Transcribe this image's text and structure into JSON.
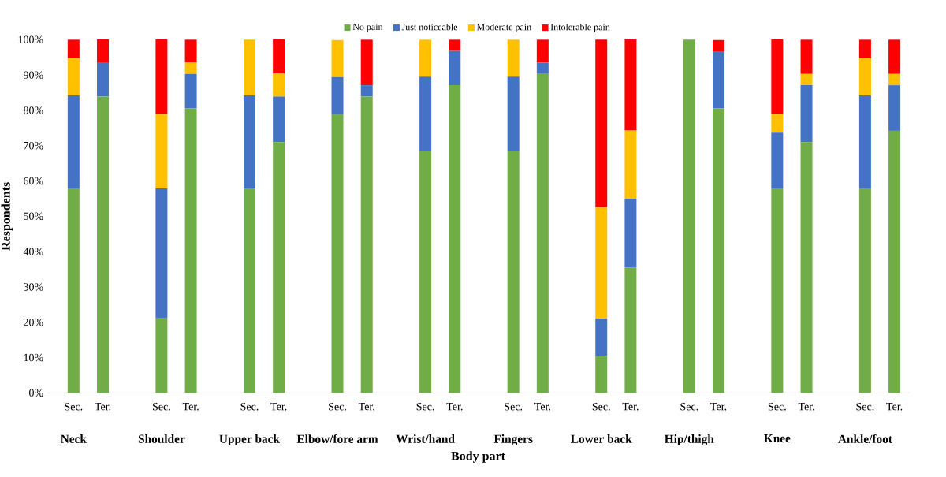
{
  "chart_data": {
    "type": "bar",
    "stacked": true,
    "xlabel": "Body part",
    "ylabel": "Respondents",
    "categories": [
      "Sec.",
      "Ter.",
      "Sec.",
      "Ter.",
      "Sec.",
      "Ter.",
      "Sec.",
      "Ter.",
      "Sec.",
      "Ter.",
      "Sec.",
      "Ter.",
      "Sec.",
      "Ter.",
      "Sec.",
      "Ter.",
      "Sec.",
      "Ter.",
      "Sec.",
      "Ter."
    ],
    "annotations": [
      "Neck",
      "Shoulder",
      "Upper back",
      "Elbow/fore arm",
      "Wrist/hand",
      "Fingers",
      "Lower back",
      "Hip/thigh",
      "Knee",
      "Ankle/foot"
    ],
    "series": [
      {
        "name": "No pain",
        "color": "#70ad47",
        "values": [
          57.9,
          83.9,
          21.1,
          80.6,
          57.9,
          71.0,
          78.9,
          83.9,
          68.4,
          87.1,
          68.4,
          90.3,
          10.5,
          35.5,
          100,
          80.6,
          57.9,
          71.0,
          57.9,
          74.2
        ]
      },
      {
        "name": "Just noticeable",
        "color": "#4472c4",
        "values": [
          26.3,
          9.7,
          36.8,
          9.7,
          26.3,
          12.9,
          10.5,
          3.2,
          21.1,
          9.7,
          21.1,
          3.2,
          10.5,
          19.4,
          0,
          16.1,
          15.8,
          16.1,
          26.3,
          12.9
        ]
      },
      {
        "name": "Moderate pain",
        "color": "#ffc000",
        "values": [
          10.5,
          0,
          21.1,
          3.2,
          15.8,
          6.5,
          10.5,
          0,
          10.5,
          0,
          10.5,
          0,
          31.6,
          19.4,
          0,
          0,
          5.3,
          3.2,
          10.5,
          3.2
        ]
      },
      {
        "name": "Intolerable pain",
        "color": "#ff0000",
        "values": [
          5.3,
          6.5,
          21.1,
          6.5,
          0,
          9.7,
          0,
          12.9,
          0,
          3.2,
          0,
          6.5,
          47.4,
          25.8,
          0,
          3.2,
          21.1,
          9.7,
          5.3,
          9.7
        ]
      }
    ],
    "ylim": [
      0,
      100
    ],
    "yticks": [
      {
        "value": 0,
        "label": "0%"
      },
      {
        "value": 10,
        "label": "10%"
      },
      {
        "value": 20,
        "label": "20%"
      },
      {
        "value": 30,
        "label": "30%"
      },
      {
        "value": 40,
        "label": "40%"
      },
      {
        "value": 50,
        "label": "50%"
      },
      {
        "value": 60,
        "label": "60%"
      },
      {
        "value": 70,
        "label": "70%"
      },
      {
        "value": 80,
        "label": "80%"
      },
      {
        "value": 90,
        "label": "90%"
      },
      {
        "value": 100,
        "label": "100%"
      }
    ],
    "legend": "top",
    "grid": false
  }
}
